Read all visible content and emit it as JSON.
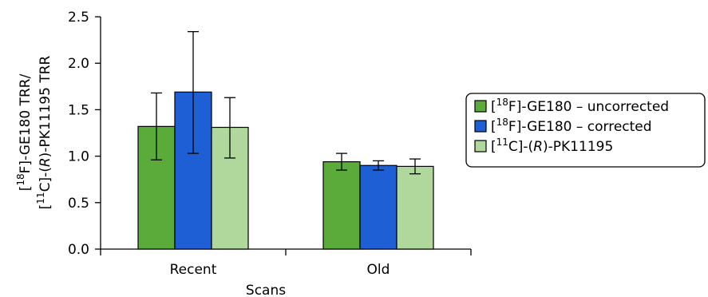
{
  "chart_data": {
    "type": "bar",
    "categories": [
      "Recent",
      "Old"
    ],
    "series": [
      {
        "name": "[18F]-GE180 – uncorrected",
        "legend_parts": [
          {
            "t": "["
          },
          {
            "t": "18",
            "sup": true
          },
          {
            "t": "F]-GE180 – uncorrected"
          }
        ],
        "color": "#5aab3a",
        "values": [
          1.32,
          0.94
        ],
        "error_low": [
          0.96,
          0.85
        ],
        "error_high": [
          1.68,
          1.03
        ]
      },
      {
        "name": "[18F]-GE180 – corrected",
        "legend_parts": [
          {
            "t": "["
          },
          {
            "t": "18",
            "sup": true
          },
          {
            "t": "F]-GE180 – corrected"
          }
        ],
        "color": "#1f5fd6",
        "values": [
          1.69,
          0.9
        ],
        "error_low": [
          1.03,
          0.85
        ],
        "error_high": [
          2.34,
          0.95
        ]
      },
      {
        "name": "[11C]-(R)-PK11195",
        "legend_parts": [
          {
            "t": "["
          },
          {
            "t": "11",
            "sup": true
          },
          {
            "t": "C]-("
          },
          {
            "t": "R",
            "italic": true
          },
          {
            "t": ")-PK11195"
          }
        ],
        "color": "#b0d89c",
        "values": [
          1.31,
          0.89
        ],
        "error_low": [
          0.98,
          0.81
        ],
        "error_high": [
          1.63,
          0.97
        ]
      }
    ],
    "xlabel": "Scans",
    "ylabel_line1": [
      {
        "t": "["
      },
      {
        "t": "18",
        "sup": true
      },
      {
        "t": "F]-GE180 TRR/"
      }
    ],
    "ylabel_line2": [
      {
        "t": "["
      },
      {
        "t": "11",
        "sup": true
      },
      {
        "t": "C]-("
      },
      {
        "t": "R",
        "italic": true
      },
      {
        "t": ")-PK11195 TRR"
      }
    ],
    "ylim": [
      0.0,
      2.5
    ],
    "yticks": [
      "0.0",
      "0.5",
      "1.0",
      "1.5",
      "2.0",
      "2.5"
    ],
    "grid": false,
    "legend_position": "right"
  }
}
